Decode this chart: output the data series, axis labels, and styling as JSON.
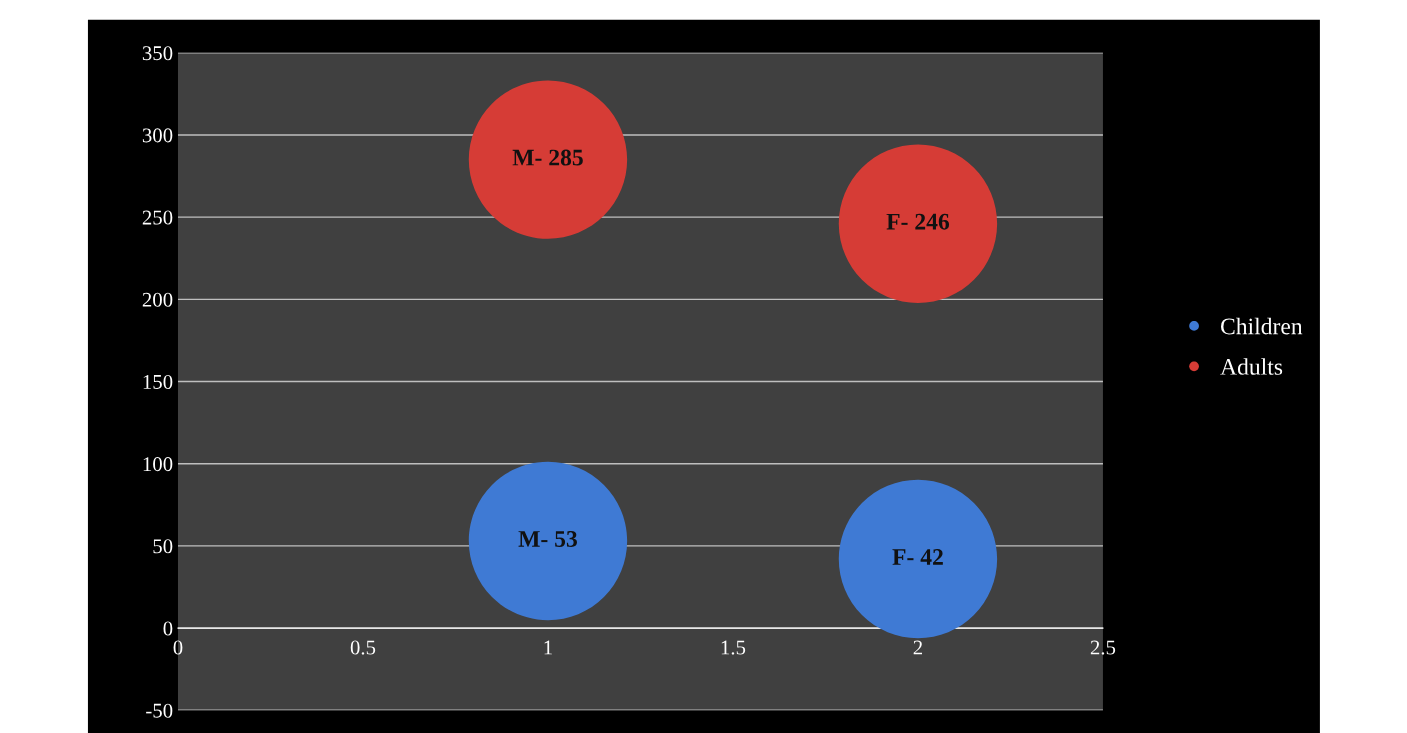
{
  "chart_data": {
    "type": "bubble",
    "x": [
      1,
      2
    ],
    "series": [
      {
        "name": "Children",
        "color": "#3f7ad4",
        "values": [
          53,
          42
        ],
        "sizes": [
          1,
          1
        ],
        "value_labels": [
          "M- 53",
          "F- 42"
        ]
      },
      {
        "name": "Adults",
        "color": "#d63c36",
        "values": [
          285,
          246
        ],
        "sizes": [
          1,
          1
        ],
        "value_labels": [
          "M- 285",
          "F- 246"
        ]
      }
    ],
    "xlim": [
      0,
      2.5
    ],
    "xticks": [
      0,
      0.5,
      1,
      1.5,
      2,
      2.5
    ],
    "ylim": [
      -50,
      350
    ],
    "yticks": [
      -50,
      0,
      50,
      100,
      150,
      200,
      250,
      300,
      350
    ],
    "grid": "y",
    "legend": "right"
  }
}
